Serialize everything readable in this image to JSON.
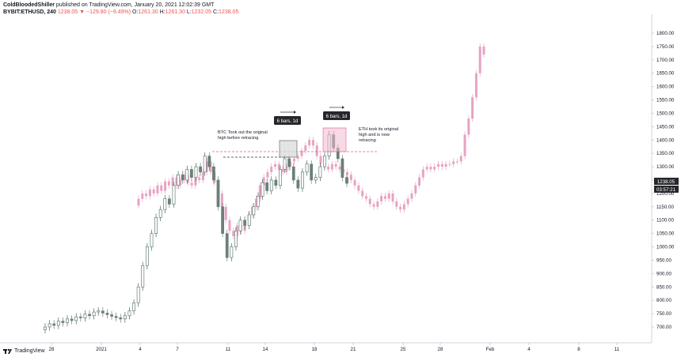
{
  "header": {
    "author": "ColdBloodedShiller",
    "published": "published on TradingView.com, January 20, 2021 12:02:39 GMT",
    "symbol": "BYBIT:ETHUSD, 240",
    "last": "1238.05",
    "change": "▼ −129.80 (−9.49%)",
    "o_label": "O:",
    "o_value": "1261.30",
    "h_label": "H:",
    "h_value": "1261.30",
    "l_label": "L:",
    "l_value": "1232.05",
    "c_label": "C:",
    "c_value": "1238.05"
  },
  "footer": {
    "brand": "TradingView",
    "icon": "tradingview-logo-icon"
  },
  "colors": {
    "up": "#26a69a",
    "down": "#ef5350",
    "candle_dark": "#4a6b60",
    "overlay": "#e7a3c3",
    "badge": "#26272b",
    "box_grey": "#d8d8d8",
    "box_pink": "#f3b9d2"
  },
  "chart_data": {
    "type": "candlestick",
    "ylim": [
      660,
      1840
    ],
    "y_ticks": [
      "700.00",
      "750.00",
      "800.00",
      "850.00",
      "900.00",
      "950.00",
      "1000.00",
      "1050.00",
      "1100.00",
      "1150.00",
      "1200.00",
      "1250.00",
      "1300.00",
      "1350.00",
      "1400.00",
      "1450.00",
      "1500.00",
      "1550.00",
      "1600.00",
      "1650.00",
      "1700.00",
      "1750.00",
      "1800.00"
    ],
    "x_ticks": [
      "28",
      "2021",
      "4",
      "7",
      "11",
      "14",
      "18",
      "21",
      "25",
      "28",
      "Feb",
      "4",
      "8",
      "11"
    ],
    "last_price": "1238.05",
    "countdown": "03:57:21",
    "main_series": [
      [
        0,
        690,
        700
      ],
      [
        1,
        700,
        712
      ],
      [
        2,
        712,
        706
      ],
      [
        3,
        706,
        722
      ],
      [
        4,
        722,
        716
      ],
      [
        5,
        716,
        730
      ],
      [
        6,
        730,
        724
      ],
      [
        7,
        724,
        738
      ],
      [
        8,
        738,
        734
      ],
      [
        9,
        734,
        748
      ],
      [
        10,
        748,
        742
      ],
      [
        11,
        742,
        756
      ],
      [
        12,
        756,
        760
      ],
      [
        13,
        760,
        752
      ],
      [
        14,
        752,
        746
      ],
      [
        15,
        746,
        740
      ],
      [
        16,
        740,
        735
      ],
      [
        17,
        735,
        730
      ],
      [
        18,
        730,
        742
      ],
      [
        19,
        742,
        760
      ],
      [
        20,
        760,
        790
      ],
      [
        21,
        790,
        850
      ],
      [
        22,
        850,
        930
      ],
      [
        23,
        930,
        1000
      ],
      [
        24,
        1000,
        1050
      ],
      [
        25,
        1050,
        1110
      ],
      [
        26,
        1110,
        1140
      ],
      [
        27,
        1140,
        1180
      ],
      [
        28,
        1180,
        1160
      ],
      [
        29,
        1160,
        1230
      ],
      [
        30,
        1230,
        1270
      ],
      [
        31,
        1270,
        1250
      ],
      [
        32,
        1250,
        1290
      ],
      [
        33,
        1290,
        1260
      ],
      [
        34,
        1260,
        1300
      ],
      [
        35,
        1300,
        1280
      ],
      [
        36,
        1280,
        1340
      ],
      [
        37,
        1340,
        1300
      ],
      [
        38,
        1300,
        1250
      ],
      [
        39,
        1250,
        1150
      ],
      [
        40,
        1150,
        1050
      ],
      [
        41,
        1050,
        960
      ],
      [
        42,
        960,
        1000
      ],
      [
        43,
        1000,
        1060
      ],
      [
        44,
        1060,
        1100
      ],
      [
        45,
        1100,
        1080
      ],
      [
        46,
        1080,
        1120
      ],
      [
        47,
        1120,
        1150
      ],
      [
        48,
        1150,
        1190
      ],
      [
        49,
        1190,
        1240
      ],
      [
        50,
        1240,
        1210
      ],
      [
        51,
        1210,
        1250
      ],
      [
        52,
        1250,
        1230
      ],
      [
        53,
        1230,
        1290
      ],
      [
        54,
        1290,
        1330
      ],
      [
        55,
        1330,
        1300
      ],
      [
        56,
        1300,
        1250
      ],
      [
        57,
        1250,
        1220
      ],
      [
        58,
        1220,
        1280
      ],
      [
        59,
        1280,
        1310
      ],
      [
        60,
        1310,
        1250
      ],
      [
        61,
        1250,
        1260
      ],
      [
        62,
        1260,
        1300
      ],
      [
        63,
        1300,
        1340
      ],
      [
        64,
        1340,
        1420
      ],
      [
        65,
        1420,
        1370
      ],
      [
        66,
        1370,
        1330
      ],
      [
        67,
        1330,
        1260
      ],
      [
        68,
        1260,
        1238
      ]
    ],
    "overlay_series": [
      [
        0,
        1180
      ],
      [
        1,
        1200
      ],
      [
        2,
        1190
      ],
      [
        3,
        1215
      ],
      [
        4,
        1200
      ],
      [
        5,
        1230
      ],
      [
        6,
        1210
      ],
      [
        7,
        1245
      ],
      [
        8,
        1230
      ],
      [
        9,
        1260
      ],
      [
        10,
        1230
      ],
      [
        11,
        1250
      ],
      [
        12,
        1270
      ],
      [
        13,
        1240
      ],
      [
        14,
        1230
      ],
      [
        15,
        1260
      ],
      [
        16,
        1250
      ],
      [
        17,
        1280
      ],
      [
        18,
        1320
      ],
      [
        19,
        1280
      ],
      [
        20,
        1240
      ],
      [
        21,
        1200
      ],
      [
        22,
        1150
      ],
      [
        23,
        1100
      ],
      [
        24,
        1060
      ],
      [
        25,
        1040
      ],
      [
        26,
        1080
      ],
      [
        27,
        1060
      ],
      [
        28,
        1100
      ],
      [
        29,
        1120
      ],
      [
        30,
        1150
      ],
      [
        31,
        1180
      ],
      [
        32,
        1230
      ],
      [
        33,
        1260
      ],
      [
        34,
        1280
      ],
      [
        35,
        1300
      ],
      [
        36,
        1310
      ],
      [
        37,
        1290
      ],
      [
        38,
        1280
      ],
      [
        39,
        1300
      ],
      [
        40,
        1320
      ],
      [
        41,
        1330
      ],
      [
        42,
        1340
      ],
      [
        43,
        1360
      ],
      [
        44,
        1380
      ],
      [
        45,
        1400
      ],
      [
        46,
        1380
      ],
      [
        47,
        1340
      ],
      [
        48,
        1310
      ],
      [
        49,
        1300
      ],
      [
        50,
        1290
      ],
      [
        51,
        1310
      ],
      [
        52,
        1300
      ],
      [
        53,
        1290
      ],
      [
        54,
        1280
      ],
      [
        55,
        1270
      ],
      [
        56,
        1250
      ],
      [
        57,
        1230
      ],
      [
        58,
        1210
      ],
      [
        59,
        1190
      ],
      [
        60,
        1180
      ],
      [
        61,
        1160
      ],
      [
        62,
        1150
      ],
      [
        63,
        1170
      ],
      [
        64,
        1190
      ],
      [
        65,
        1180
      ],
      [
        66,
        1200
      ],
      [
        67,
        1170
      ],
      [
        68,
        1150
      ],
      [
        69,
        1140
      ],
      [
        70,
        1160
      ],
      [
        71,
        1180
      ],
      [
        72,
        1200
      ],
      [
        73,
        1230
      ],
      [
        74,
        1260
      ],
      [
        75,
        1290
      ],
      [
        76,
        1300
      ],
      [
        77,
        1290
      ],
      [
        78,
        1300
      ],
      [
        79,
        1310
      ],
      [
        80,
        1300
      ],
      [
        81,
        1310
      ],
      [
        82,
        1310
      ],
      [
        83,
        1320
      ],
      [
        84,
        1320
      ],
      [
        85,
        1340
      ],
      [
        86,
        1420
      ],
      [
        87,
        1480
      ],
      [
        88,
        1560
      ],
      [
        89,
        1650
      ],
      [
        90,
        1750
      ],
      [
        91,
        1720
      ]
    ],
    "annotations": {
      "box1_label": "6 bars, 1d",
      "box2_label": "6 bars, 1d",
      "btc_note": [
        "BTC Took out the original",
        "high before retracing"
      ],
      "eth_note": [
        "ETH took its original",
        "high and is now",
        "retracing"
      ]
    }
  }
}
